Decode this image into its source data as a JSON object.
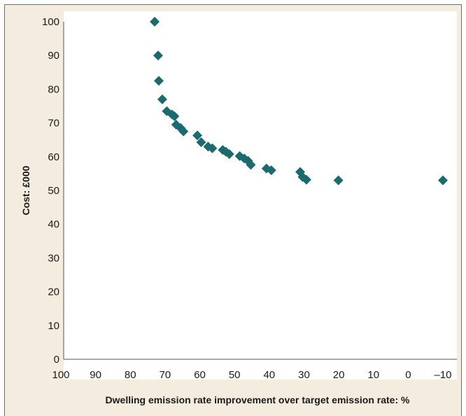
{
  "chart_data": {
    "type": "scatter",
    "xlabel": "Dwelling emission rate improvement over target emission rate: %",
    "ylabel": "Cost: £000",
    "xlim": [
      100,
      -10
    ],
    "ylim": [
      0,
      100
    ],
    "x_reversed": true,
    "x_ticks": [
      100,
      90,
      80,
      70,
      60,
      50,
      40,
      30,
      20,
      10,
      0,
      -10
    ],
    "x_tick_labels": [
      "100",
      "90",
      "80",
      "70",
      "60",
      "50",
      "40",
      "30",
      "20",
      "10",
      "0",
      "–10"
    ],
    "y_ticks": [
      0,
      10,
      20,
      30,
      40,
      50,
      60,
      70,
      80,
      90,
      100
    ],
    "y_tick_labels": [
      "0",
      "10",
      "20",
      "30",
      "40",
      "50",
      "60",
      "70",
      "80",
      "90",
      "100"
    ],
    "grid": false,
    "marker": "diamond",
    "series": [
      {
        "color": "#1b6b6e",
        "points": [
          {
            "x": 73,
            "y": 100
          },
          {
            "x": 72,
            "y": 90
          },
          {
            "x": 71.8,
            "y": 82.5
          },
          {
            "x": 70.8,
            "y": 77
          },
          {
            "x": 69.5,
            "y": 73.5
          },
          {
            "x": 68,
            "y": 72.5
          },
          {
            "x": 67.3,
            "y": 72
          },
          {
            "x": 66.8,
            "y": 69.5
          },
          {
            "x": 65.5,
            "y": 68.5
          },
          {
            "x": 64.7,
            "y": 67.5
          },
          {
            "x": 60.7,
            "y": 66.3
          },
          {
            "x": 59.6,
            "y": 64.3
          },
          {
            "x": 57.6,
            "y": 63
          },
          {
            "x": 56.4,
            "y": 62.5
          },
          {
            "x": 53.4,
            "y": 62
          },
          {
            "x": 52.5,
            "y": 61.5
          },
          {
            "x": 51.5,
            "y": 60.8
          },
          {
            "x": 48.5,
            "y": 60.2
          },
          {
            "x": 47.2,
            "y": 59.5
          },
          {
            "x": 46.1,
            "y": 58.8
          },
          {
            "x": 45.3,
            "y": 57.6
          },
          {
            "x": 40.8,
            "y": 56.5
          },
          {
            "x": 39.4,
            "y": 56
          },
          {
            "x": 31.1,
            "y": 55.5
          },
          {
            "x": 30.4,
            "y": 54
          },
          {
            "x": 29.3,
            "y": 53.2
          },
          {
            "x": 20.1,
            "y": 53
          },
          {
            "x": -10,
            "y": 53
          }
        ]
      }
    ]
  }
}
